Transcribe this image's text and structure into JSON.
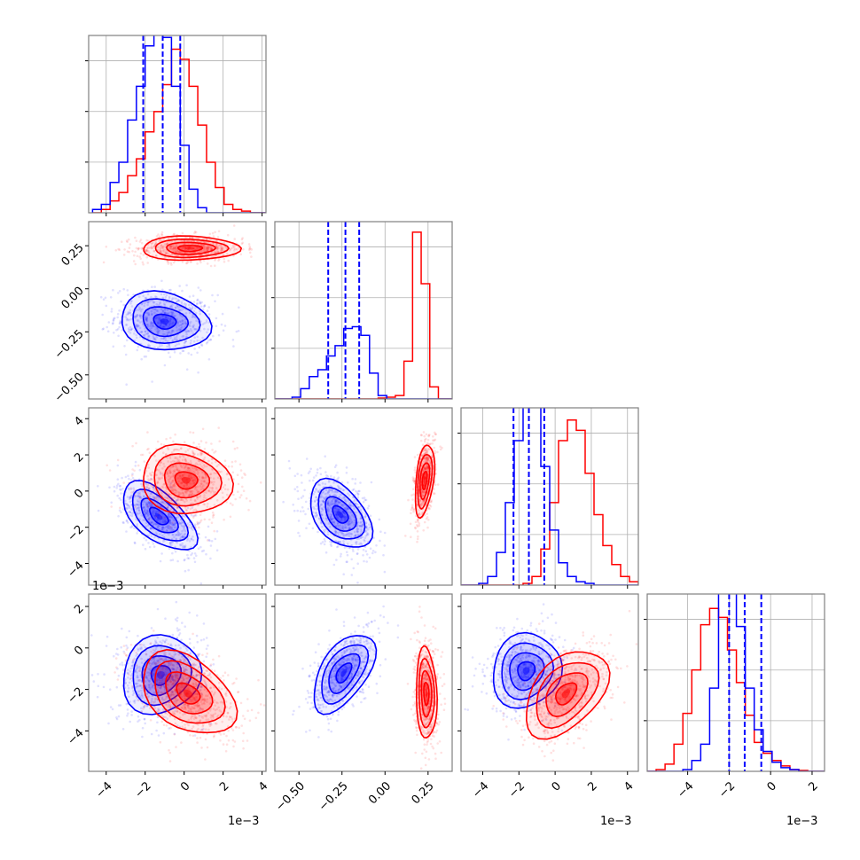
{
  "chart_data": {
    "type": "corner",
    "title": "",
    "parameters": 4,
    "series": [
      {
        "name": "blue",
        "color": "#0000ff"
      },
      {
        "name": "red",
        "color": "#ff0000"
      }
    ],
    "axes": [
      {
        "range": [
          -4.9,
          4.2
        ],
        "ticks": [
          -4,
          -2,
          0,
          2,
          4
        ],
        "tick_labels": [
          "−4",
          "−2",
          "0",
          "2",
          "4"
        ],
        "offset_label": "1e−3"
      },
      {
        "range": [
          -0.64,
          0.39
        ],
        "ticks": [
          -0.5,
          -0.25,
          0.0,
          0.25
        ],
        "tick_labels": [
          "−0.50",
          "−0.25",
          "0.00",
          "0.25"
        ],
        "offset_label": ""
      },
      {
        "range": [
          -5.2,
          4.6
        ],
        "ticks": [
          -4,
          -2,
          0,
          2,
          4
        ],
        "tick_labels": [
          "−4",
          "−2",
          "0",
          "2",
          "4"
        ],
        "offset_label": "1e−3"
      },
      {
        "range": [
          -5.95,
          2.6
        ],
        "ticks": [
          -4,
          -2,
          0,
          2
        ],
        "tick_labels": [
          "−4",
          "−2",
          "0",
          "2"
        ],
        "offset_label": "1e−3"
      }
    ],
    "marginals": [
      {
        "param": 0,
        "edges_start": -4.7,
        "bin_width": 0.45,
        "blue": [
          0.02,
          0.05,
          0.18,
          0.3,
          0.55,
          0.75,
          0.99,
          1.1,
          1.04,
          0.75,
          0.4,
          0.14,
          0.03,
          0,
          0,
          0,
          0,
          0,
          0,
          0
        ],
        "red": [
          0,
          0.02,
          0.07,
          0.12,
          0.22,
          0.32,
          0.48,
          0.6,
          0.76,
          0.97,
          0.91,
          0.75,
          0.52,
          0.3,
          0.15,
          0.05,
          0.02,
          0.01,
          0,
          0
        ],
        "blue_quantiles": [
          -2.1,
          -1.1,
          -0.2
        ],
        "ymax": 1.02
      },
      {
        "param": 1,
        "edges_start": -0.64,
        "bin_width": 0.05,
        "blue": [
          0,
          0,
          0.01,
          0.06,
          0.13,
          0.17,
          0.25,
          0.31,
          0.41,
          0.42,
          0.37,
          0.15,
          0.02,
          0,
          0,
          0,
          0,
          0,
          0,
          0,
          0
        ],
        "red": [
          0,
          0,
          0,
          0,
          0,
          0,
          0,
          0,
          0,
          0,
          0,
          0,
          0.005,
          0.01,
          0.02,
          0.22,
          0.97,
          0.67,
          0.07,
          0,
          0
        ],
        "blue_quantiles": [
          -0.33,
          -0.23,
          -0.15
        ],
        "ymax": 1.0
      },
      {
        "param": 2,
        "edges_start": -5.2,
        "bin_width": 0.49,
        "blue": [
          0,
          0,
          0.01,
          0.05,
          0.19,
          0.48,
          0.84,
          1.1,
          1.05,
          0.69,
          0.32,
          0.13,
          0.05,
          0.02,
          0.01,
          0,
          0,
          0,
          0,
          0
        ],
        "red": [
          0,
          0,
          0,
          0,
          0,
          0,
          0,
          0.01,
          0.05,
          0.21,
          0.48,
          0.84,
          0.96,
          0.9,
          0.65,
          0.41,
          0.23,
          0.12,
          0.05,
          0.02
        ],
        "blue_quantiles": [
          -2.3,
          -1.45,
          -0.6
        ],
        "ymax": 1.0
      },
      {
        "param": 3,
        "edges_start": -5.95,
        "bin_width": 0.43,
        "blue": [
          0,
          0,
          0,
          0,
          0.01,
          0.06,
          0.15,
          0.46,
          1.2,
          1.1,
          0.8,
          0.46,
          0.23,
          0.11,
          0.05,
          0.02,
          0.01,
          0,
          0,
          0
        ],
        "red": [
          0,
          0.01,
          0.04,
          0.15,
          0.32,
          0.56,
          0.81,
          0.9,
          0.85,
          0.67,
          0.49,
          0.31,
          0.16,
          0.1,
          0.06,
          0.03,
          0.01,
          0.005,
          0,
          0
        ],
        "blue_quantiles": [
          -2.0,
          -1.25,
          -0.45
        ],
        "ymax": 0.95
      }
    ],
    "joint": [
      {
        "x": 0,
        "y": 1,
        "blue": {
          "mean": [
            -1.0,
            -0.19
          ],
          "sd": [
            1.15,
            0.085
          ],
          "rho": -0.15
        },
        "red": {
          "mean": [
            0.3,
            0.235
          ],
          "sd": [
            1.25,
            0.035
          ],
          "rho": 0.0
        }
      },
      {
        "x": 0,
        "y": 2,
        "blue": {
          "mean": [
            -1.3,
            -1.4
          ],
          "sd": [
            0.95,
            0.95
          ],
          "rho": -0.6
        },
        "red": {
          "mean": [
            0.1,
            0.6
          ],
          "sd": [
            1.15,
            0.95
          ],
          "rho": -0.1
        }
      },
      {
        "x": 1,
        "y": 2,
        "blue": {
          "mean": [
            -0.26,
            -1.3
          ],
          "sd": [
            0.09,
            0.95
          ],
          "rho": -0.45
        },
        "red": {
          "mean": [
            0.23,
            0.6
          ],
          "sd": [
            0.028,
            1.0
          ],
          "rho": 0.4
        }
      },
      {
        "x": 0,
        "y": 3,
        "blue": {
          "mean": [
            -1.2,
            -1.3
          ],
          "sd": [
            1.0,
            0.95
          ],
          "rho": 0.1
        },
        "red": {
          "mean": [
            0.2,
            -2.2
          ],
          "sd": [
            1.2,
            1.0
          ],
          "rho": -0.4
        }
      },
      {
        "x": 1,
        "y": 3,
        "blue": {
          "mean": [
            -0.24,
            -1.2
          ],
          "sd": [
            0.09,
            0.95
          ],
          "rho": 0.55
        },
        "red": {
          "mean": [
            0.24,
            -2.2
          ],
          "sd": [
            0.03,
            1.1
          ],
          "rho": -0.1
        }
      },
      {
        "x": 2,
        "y": 3,
        "blue": {
          "mean": [
            -1.6,
            -1.1
          ],
          "sd": [
            0.95,
            0.9
          ],
          "rho": 0.1
        },
        "red": {
          "mean": [
            0.6,
            -2.2
          ],
          "sd": [
            1.15,
            1.05
          ],
          "rho": 0.45
        }
      }
    ]
  }
}
